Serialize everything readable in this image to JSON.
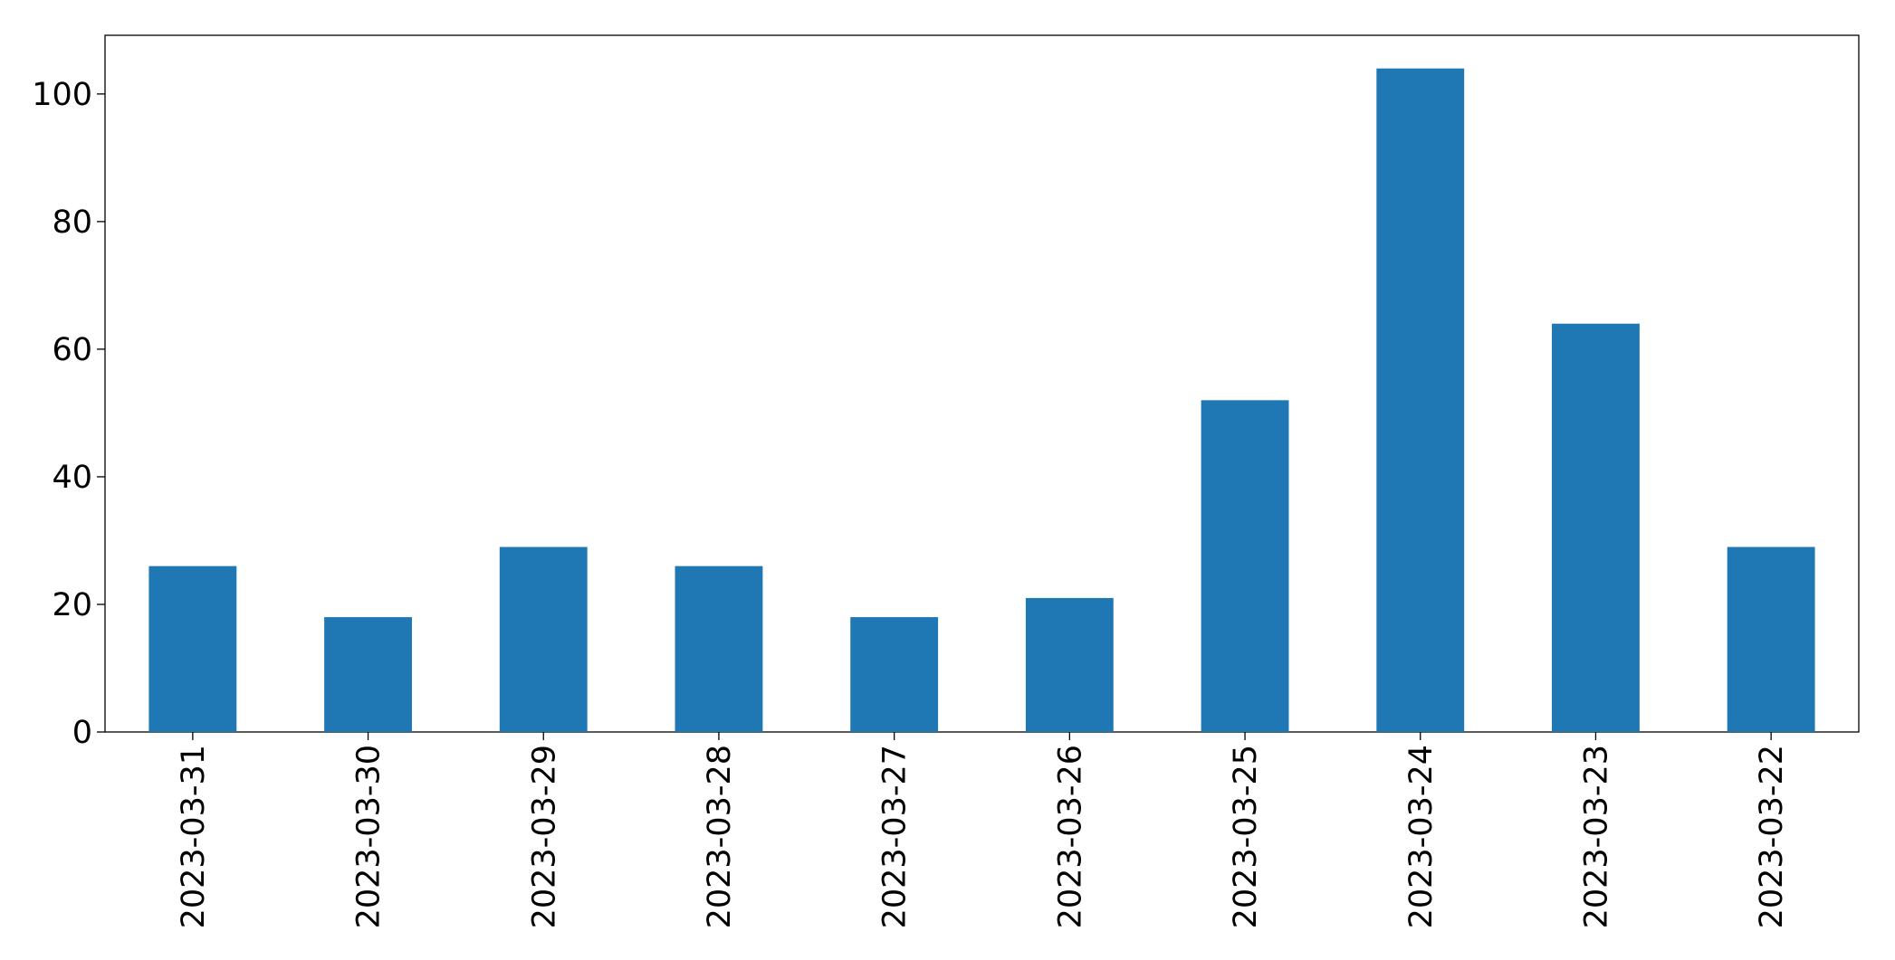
{
  "chart_data": {
    "type": "bar",
    "categories": [
      "2023-03-31",
      "2023-03-30",
      "2023-03-29",
      "2023-03-28",
      "2023-03-27",
      "2023-03-26",
      "2023-03-25",
      "2023-03-24",
      "2023-03-23",
      "2023-03-22"
    ],
    "values": [
      26,
      18,
      29,
      26,
      18,
      21,
      52,
      104,
      64,
      29
    ],
    "color": "#1f77b4",
    "ylim": [
      0,
      109.2
    ],
    "yticks": [
      0,
      20,
      40,
      60,
      80,
      100
    ],
    "grid": false
  }
}
